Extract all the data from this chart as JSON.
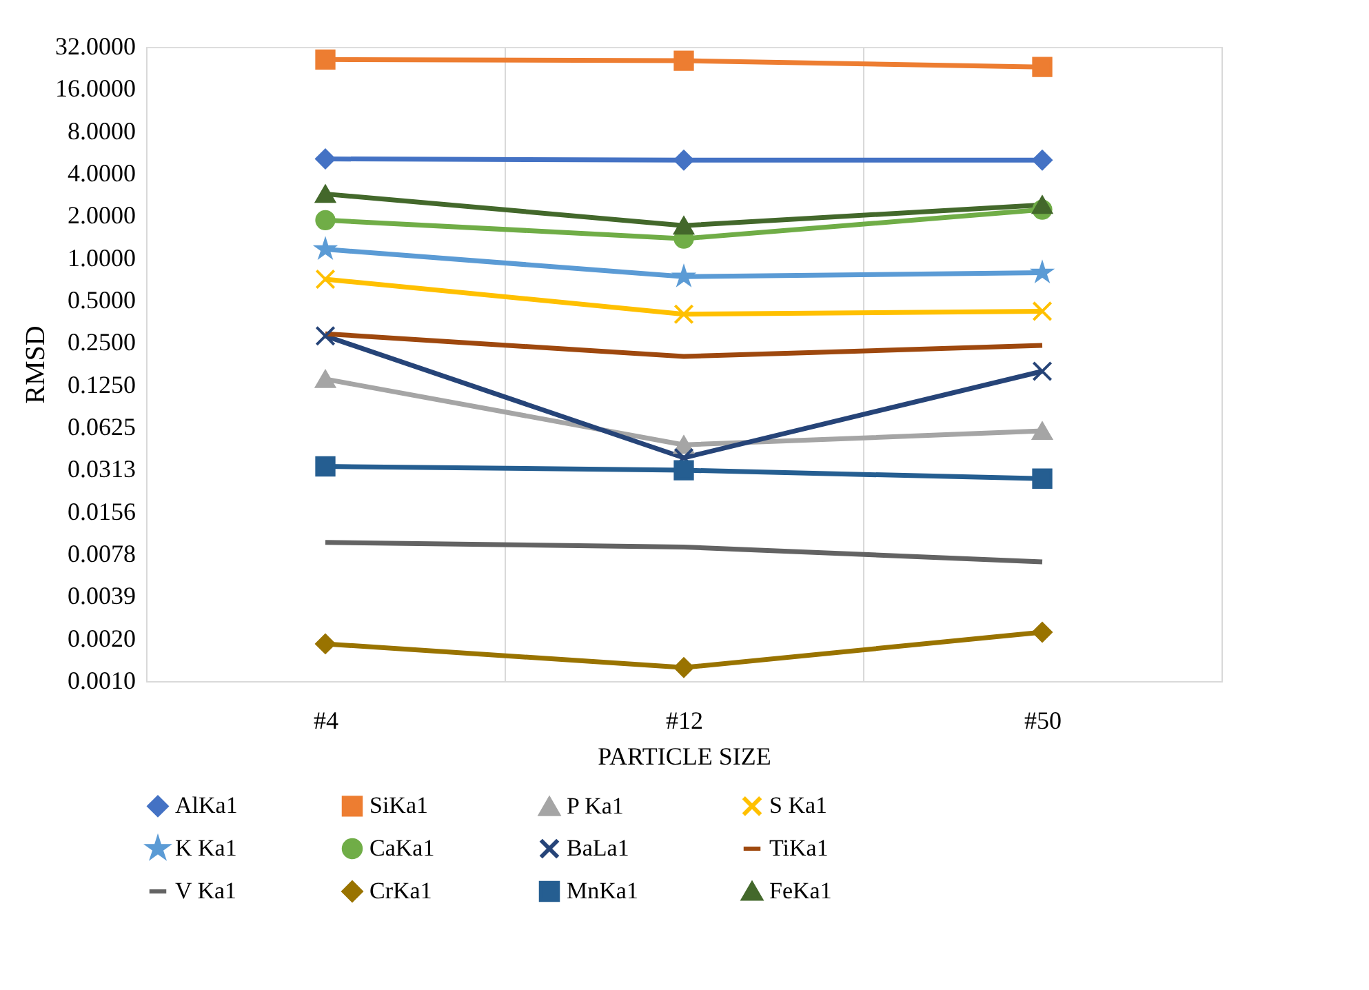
{
  "chart_data": {
    "type": "line",
    "xlabel": "PARTICLE SIZE",
    "ylabel": "RMSD",
    "categories": [
      "#4",
      "#12",
      "#50"
    ],
    "log": "y",
    "grid": "x",
    "legend": "bottom",
    "line_style": "solid",
    "ylim": [
      0.0009765625,
      32
    ],
    "yticks": [
      {
        "value": 0.0009765625,
        "label": "0.0010"
      },
      {
        "value": 0.001953125,
        "label": "0.0020"
      },
      {
        "value": 0.00390625,
        "label": "0.0039"
      },
      {
        "value": 0.0078125,
        "label": "0.0078"
      },
      {
        "value": 0.015625,
        "label": "0.0156"
      },
      {
        "value": 0.03125,
        "label": "0.0313"
      },
      {
        "value": 0.0625,
        "label": "0.0625"
      },
      {
        "value": 0.125,
        "label": "0.1250"
      },
      {
        "value": 0.25,
        "label": "0.2500"
      },
      {
        "value": 0.5,
        "label": "0.5000"
      },
      {
        "value": 1,
        "label": "1.0000"
      },
      {
        "value": 2,
        "label": "2.0000"
      },
      {
        "value": 4,
        "label": "4.0000"
      },
      {
        "value": 8,
        "label": "8.0000"
      },
      {
        "value": 16,
        "label": "16.0000"
      },
      {
        "value": 32,
        "label": "32.0000"
      }
    ],
    "series": [
      {
        "name": "AlKa1",
        "color": "#4472c4",
        "marker": "diamond",
        "values": [
          5.1,
          5.0,
          5.0
        ]
      },
      {
        "name": "SiKa1",
        "color": "#ed7d31",
        "marker": "square",
        "values": [
          26,
          25.5,
          23
        ]
      },
      {
        "name": "P Ka1",
        "color": "#a5a5a5",
        "marker": "triangle",
        "values": [
          0.138,
          0.047,
          0.059
        ]
      },
      {
        "name": "S Ka1",
        "color": "#ffc000",
        "marker": "cross",
        "values": [
          0.71,
          0.4,
          0.42
        ]
      },
      {
        "name": "K Ka1",
        "color": "#5b9bd5",
        "marker": "star",
        "values": [
          1.16,
          0.74,
          0.79
        ]
      },
      {
        "name": "CaKa1",
        "color": "#70ad47",
        "marker": "circle",
        "values": [
          1.87,
          1.38,
          2.22
        ]
      },
      {
        "name": "BaLa1",
        "color": "#264478",
        "marker": "cross",
        "values": [
          0.28,
          0.038,
          0.157
        ]
      },
      {
        "name": "TiKa1",
        "color": "#9e480e",
        "marker": "none",
        "values": [
          0.29,
          0.2,
          0.24
        ]
      },
      {
        "name": "V Ka1",
        "color": "#636363",
        "marker": "none",
        "values": [
          0.0095,
          0.0088,
          0.0069
        ]
      },
      {
        "name": "CrKa1",
        "color": "#997300",
        "marker": "diamond",
        "values": [
          0.0018,
          0.00122,
          0.00218
        ]
      },
      {
        "name": "MnKa1",
        "color": "#255e91",
        "marker": "square",
        "values": [
          0.033,
          0.031,
          0.027
        ]
      },
      {
        "name": "FeKa1",
        "color": "#43682b",
        "marker": "triangle",
        "values": [
          2.87,
          1.71,
          2.4
        ]
      }
    ]
  }
}
